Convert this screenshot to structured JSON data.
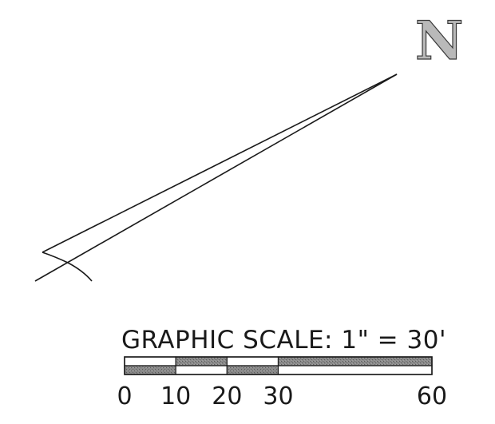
{
  "north_arrow": {
    "letter": "N"
  },
  "graphic_scale": {
    "title": "GRAPHIC SCALE: 1\" = 30'",
    "ticks": [
      {
        "label": "0",
        "value": 0
      },
      {
        "label": "10",
        "value": 10
      },
      {
        "label": "20",
        "value": 20
      },
      {
        "label": "30",
        "value": 30
      },
      {
        "label": "60",
        "value": 60
      }
    ],
    "segments": [
      {
        "from": 0,
        "to": 10,
        "top": "white",
        "bottom": "dark"
      },
      {
        "from": 10,
        "to": 20,
        "top": "dark",
        "bottom": "white"
      },
      {
        "from": 20,
        "to": 30,
        "top": "white",
        "bottom": "dark"
      },
      {
        "from": 30,
        "to": 60,
        "top": "dark",
        "bottom": "white"
      }
    ],
    "colors": {
      "dark": "#7a7a7a",
      "white": "#ffffff",
      "ink": "#1a1a1a"
    }
  }
}
